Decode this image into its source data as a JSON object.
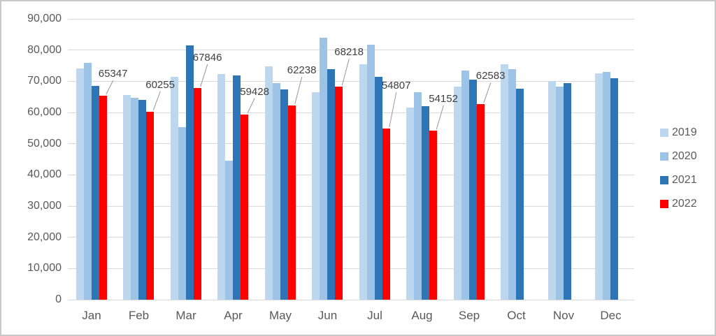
{
  "chart_data": {
    "type": "bar",
    "title": "",
    "xlabel": "",
    "ylabel": "",
    "categories": [
      "Jan",
      "Feb",
      "Mar",
      "Apr",
      "May",
      "Jun",
      "Jul",
      "Aug",
      "Sep",
      "Oct",
      "Nov",
      "Dec"
    ],
    "series": [
      {
        "name": "2019",
        "color": "#BDD7EE",
        "values": [
          74200,
          65500,
          71500,
          72300,
          74800,
          66500,
          75400,
          61500,
          68300,
          75400,
          70000,
          72600
        ]
      },
      {
        "name": "2020",
        "color": "#9DC3E6",
        "values": [
          76000,
          64800,
          55200,
          44600,
          69500,
          84000,
          81700,
          66400,
          73400,
          73900,
          68200,
          73000
        ]
      },
      {
        "name": "2021",
        "color": "#2E75B6",
        "values": [
          68600,
          64100,
          81500,
          71900,
          67400,
          73900,
          71400,
          62000,
          70600,
          67600,
          69300,
          71000
        ]
      },
      {
        "name": "2022",
        "color": "#FF0000",
        "values": [
          65347,
          60255,
          67846,
          59428,
          62238,
          68218,
          54807,
          54152,
          62583,
          null,
          null,
          null
        ]
      }
    ],
    "data_labels": {
      "series": "2022",
      "labels": [
        "65347",
        "60255",
        "67846",
        "59428",
        "62238",
        "68218",
        "54807",
        "54152",
        "62583"
      ]
    },
    "ylim": [
      0,
      90000
    ],
    "ytick_step": 10000,
    "ytick_labels": [
      "0",
      "10,000",
      "20,000",
      "30,000",
      "40,000",
      "50,000",
      "60,000",
      "70,000",
      "80,000",
      "90,000"
    ],
    "grid": true,
    "legend_position": "right",
    "legend_entries": [
      "2019",
      "2020",
      "2021",
      "2022"
    ]
  },
  "colors": {
    "background": "#FFFFFF",
    "frame_border": "#C9C9C9",
    "gridline": "#D9D9D9",
    "axis_text": "#595959",
    "data_label_text": "#404040",
    "leader_line": "#969696"
  }
}
